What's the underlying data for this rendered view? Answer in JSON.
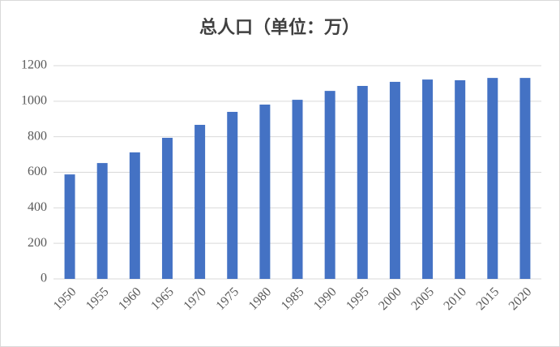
{
  "chart_data": {
    "type": "bar",
    "title": "总人口（单位：万）",
    "categories": [
      "1950",
      "1955",
      "1960",
      "1965",
      "1970",
      "1975",
      "1980",
      "1985",
      "1990",
      "1995",
      "2000",
      "2005",
      "2010",
      "2015",
      "2020"
    ],
    "values": [
      588,
      652,
      712,
      794,
      867,
      940,
      981,
      1008,
      1058,
      1086,
      1109,
      1122,
      1118,
      1131,
      1131
    ],
    "color": "#4472c4",
    "ylim": [
      0,
      1200
    ],
    "yticks": [
      0,
      200,
      400,
      600,
      800,
      1000,
      1200
    ],
    "grid": true
  }
}
